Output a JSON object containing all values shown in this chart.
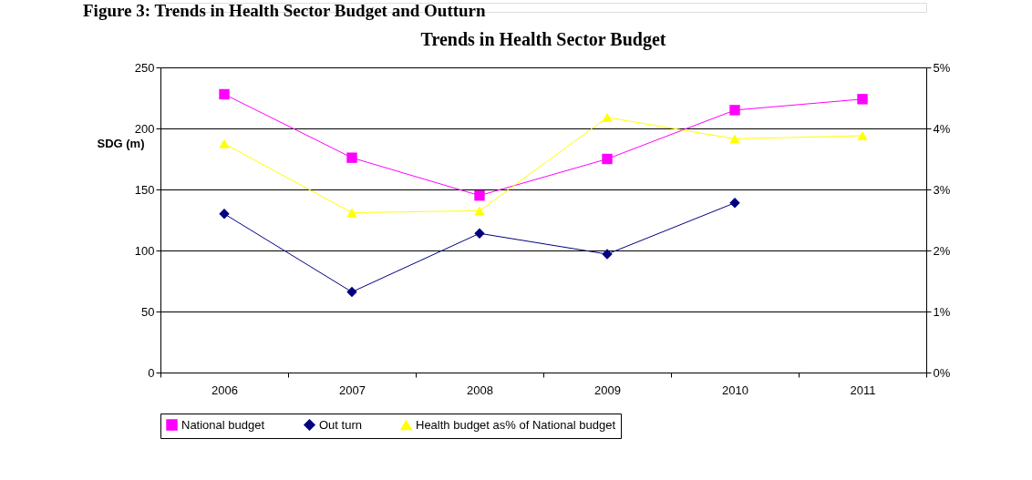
{
  "chart_data": {
    "type": "line",
    "title": "Trends in Health Sector Budget",
    "ylabel": "SDG (m)",
    "annotations": [
      "Figure 3: Trends in Health Sector Budget and Outturn"
    ],
    "categories": [
      "2006",
      "2007",
      "2008",
      "2009",
      "2010",
      "2011"
    ],
    "series": [
      {
        "name": "National budget",
        "color": "#ff00ff",
        "marker": "square",
        "values": [
          228,
          176,
          145,
          175,
          215,
          224
        ]
      },
      {
        "name": "Out turn",
        "color": "#000080",
        "marker": "diamond",
        "values": [
          130,
          66,
          114,
          97,
          139,
          null
        ]
      },
      {
        "name": "Health budget as% of National budget",
        "color": "#ffff00",
        "marker": "triangle",
        "axis": "y2",
        "values": [
          3.75,
          2.62,
          2.65,
          4.18,
          3.83,
          3.88
        ]
      }
    ],
    "ylim": [
      0,
      250
    ],
    "yticks": [
      0,
      50,
      100,
      150,
      200,
      250
    ],
    "y2lim": [
      0,
      5
    ],
    "y2ticks": [
      {
        "value": 0,
        "label": "0%"
      },
      {
        "value": 1,
        "label": "1%"
      },
      {
        "value": 2,
        "label": "2%"
      },
      {
        "value": 3,
        "label": "3%"
      },
      {
        "value": 4,
        "label": "4%"
      },
      {
        "value": 5,
        "label": "5%"
      }
    ],
    "grid": "y",
    "legend": "bottom"
  }
}
